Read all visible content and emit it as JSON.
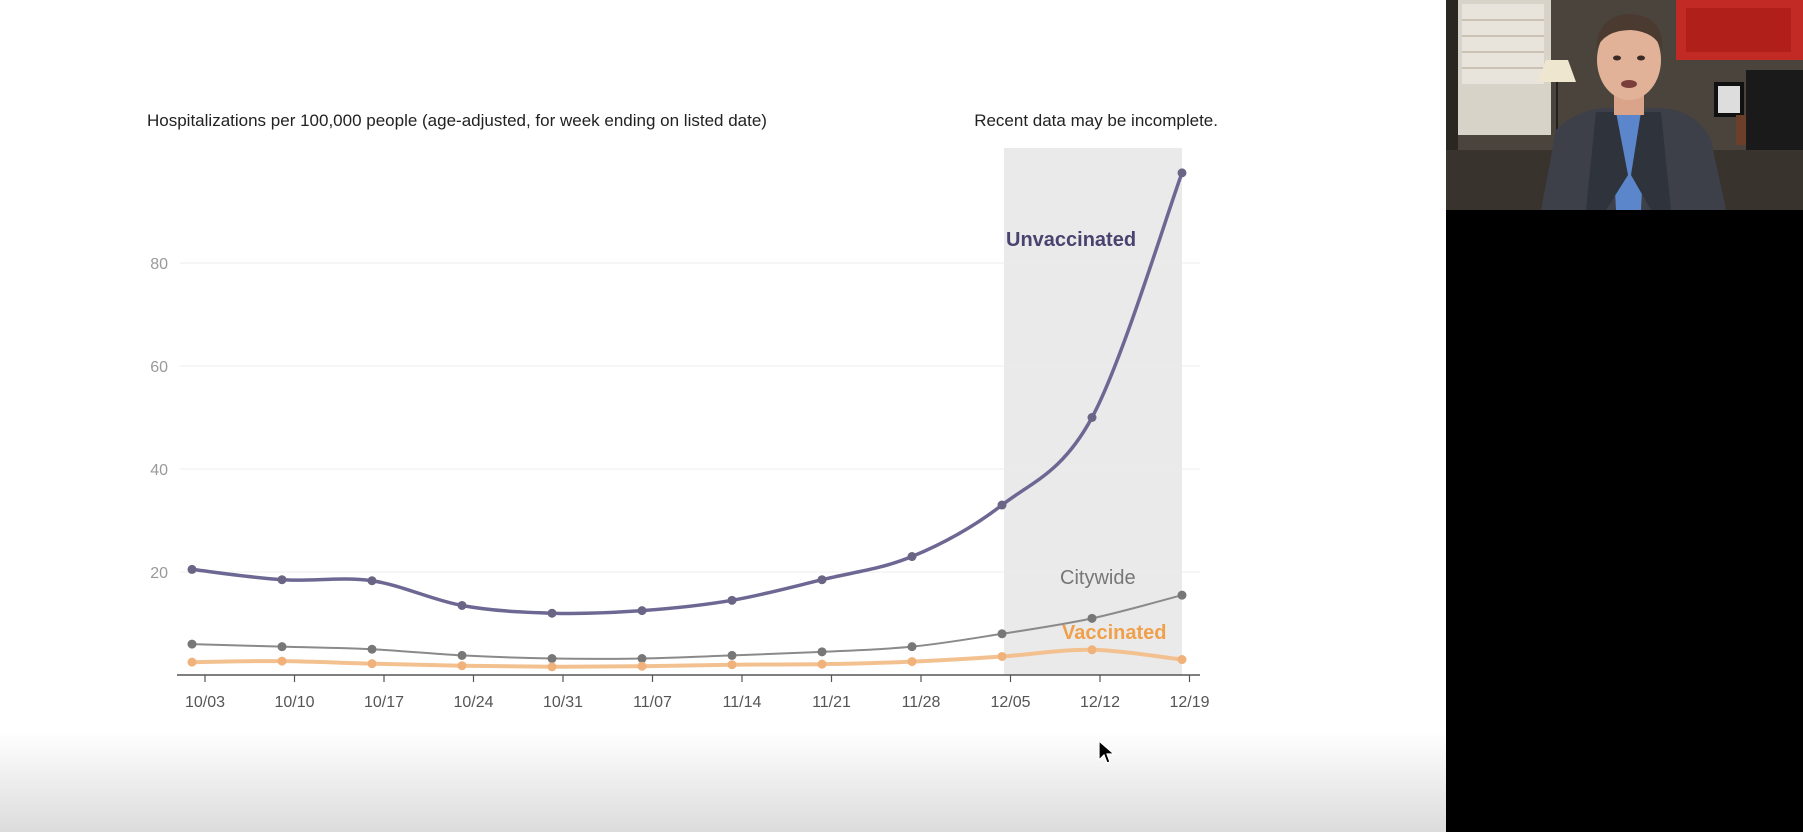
{
  "chart_data": {
    "type": "line",
    "title": "Hospitalizations per 100,000 people (age-adjusted, for week ending on listed date)",
    "note": "Recent data may be incomplete.",
    "categories": [
      "10/03",
      "10/10",
      "10/17",
      "10/24",
      "10/31",
      "11/07",
      "11/14",
      "11/21",
      "11/28",
      "12/05",
      "12/12",
      "12/19"
    ],
    "y_ticks": [
      20,
      40,
      60,
      80
    ],
    "ylim": [
      0,
      100
    ],
    "grid": true,
    "shaded_region": {
      "from": "12/05",
      "to": "12/19"
    },
    "series": [
      {
        "name": "Unvaccinated",
        "color": "#6d6893",
        "label_color": "#4a4370",
        "bold": true,
        "values": [
          20.5,
          18.5,
          18.3,
          13.5,
          12.0,
          12.5,
          14.5,
          18.5,
          23.0,
          33.0,
          50.0,
          97.5
        ]
      },
      {
        "name": "Citywide",
        "color": "#8a8a8a",
        "label_color": "#777777",
        "bold": false,
        "values": [
          6.0,
          5.5,
          5.0,
          3.8,
          3.2,
          3.2,
          3.8,
          4.5,
          5.5,
          8.0,
          11.0,
          15.5
        ]
      },
      {
        "name": "Vaccinated",
        "color": "#f3c190",
        "label_color": "#f0a04a",
        "bold": true,
        "values": [
          2.5,
          2.7,
          2.2,
          1.8,
          1.6,
          1.7,
          2.0,
          2.1,
          2.6,
          3.6,
          4.9,
          3.0
        ]
      }
    ]
  },
  "video": {
    "participant_icon": "webcam-participant-icon"
  },
  "cursor": {
    "icon": "mouse-pointer-icon"
  }
}
